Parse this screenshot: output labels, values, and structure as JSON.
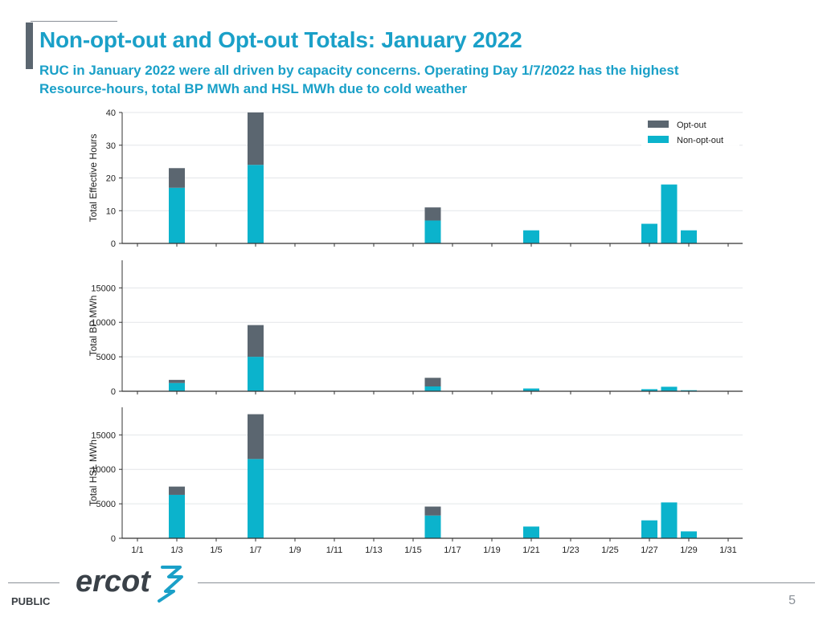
{
  "header": {
    "title": "Non-opt-out and Opt-out Totals: January 2022",
    "subtitle": "RUC in January 2022 were all driven by capacity concerns. Operating Day 1/7/2022 has the highest Resource-hours, total BP MWh and HSL MWh due to cold weather"
  },
  "footer": {
    "label": "PUBLIC",
    "page_number": "5",
    "logo_text": "ercot"
  },
  "colors": {
    "opt_out": "#5b6670",
    "non_opt_out": "#0bb3cc",
    "accent": "#1aa0c8"
  },
  "chart_data": [
    {
      "type": "bar",
      "stacked": true,
      "ylabel": "Total Effective Hours",
      "ylim": [
        0,
        40
      ],
      "yticks": [
        0,
        10,
        20,
        30,
        40
      ],
      "legend": {
        "placement": "top-right",
        "entries": [
          "Opt-out",
          "Non-opt-out"
        ]
      },
      "bars": [
        {
          "day": 3,
          "non_opt_out": 17,
          "opt_out": 6
        },
        {
          "day": 7,
          "non_opt_out": 24,
          "opt_out": 16
        },
        {
          "day": 16,
          "non_opt_out": 7,
          "opt_out": 4
        },
        {
          "day": 21,
          "non_opt_out": 4,
          "opt_out": 0
        },
        {
          "day": 27,
          "non_opt_out": 6,
          "opt_out": 0
        },
        {
          "day": 28,
          "non_opt_out": 18,
          "opt_out": 0
        },
        {
          "day": 29,
          "non_opt_out": 4,
          "opt_out": 0
        }
      ]
    },
    {
      "type": "bar",
      "stacked": true,
      "ylabel": "Total BP MWh",
      "ylim": [
        0,
        19000
      ],
      "yticks": [
        0,
        5000,
        10000,
        15000
      ],
      "bars": [
        {
          "day": 3,
          "non_opt_out": 1200,
          "opt_out": 450
        },
        {
          "day": 7,
          "non_opt_out": 5000,
          "opt_out": 4600
        },
        {
          "day": 16,
          "non_opt_out": 700,
          "opt_out": 1250
        },
        {
          "day": 21,
          "non_opt_out": 400,
          "opt_out": 0
        },
        {
          "day": 27,
          "non_opt_out": 300,
          "opt_out": 0
        },
        {
          "day": 28,
          "non_opt_out": 650,
          "opt_out": 0
        },
        {
          "day": 29,
          "non_opt_out": 150,
          "opt_out": 0
        }
      ]
    },
    {
      "type": "bar",
      "stacked": true,
      "ylabel": "Total HSL MWh",
      "ylim": [
        0,
        19000
      ],
      "yticks": [
        0,
        5000,
        10000,
        15000
      ],
      "xlabel": "",
      "xticks": [
        "1/1",
        "1/3",
        "1/5",
        "1/7",
        "1/9",
        "1/11",
        "1/13",
        "1/15",
        "1/17",
        "1/19",
        "1/21",
        "1/23",
        "1/25",
        "1/27",
        "1/29",
        "1/31"
      ],
      "bars": [
        {
          "day": 3,
          "non_opt_out": 6300,
          "opt_out": 1200
        },
        {
          "day": 7,
          "non_opt_out": 11500,
          "opt_out": 6500
        },
        {
          "day": 16,
          "non_opt_out": 3300,
          "opt_out": 1300
        },
        {
          "day": 21,
          "non_opt_out": 1700,
          "opt_out": 0
        },
        {
          "day": 27,
          "non_opt_out": 2600,
          "opt_out": 0
        },
        {
          "day": 28,
          "non_opt_out": 5200,
          "opt_out": 0
        },
        {
          "day": 29,
          "non_opt_out": 1000,
          "opt_out": 0
        }
      ]
    }
  ]
}
